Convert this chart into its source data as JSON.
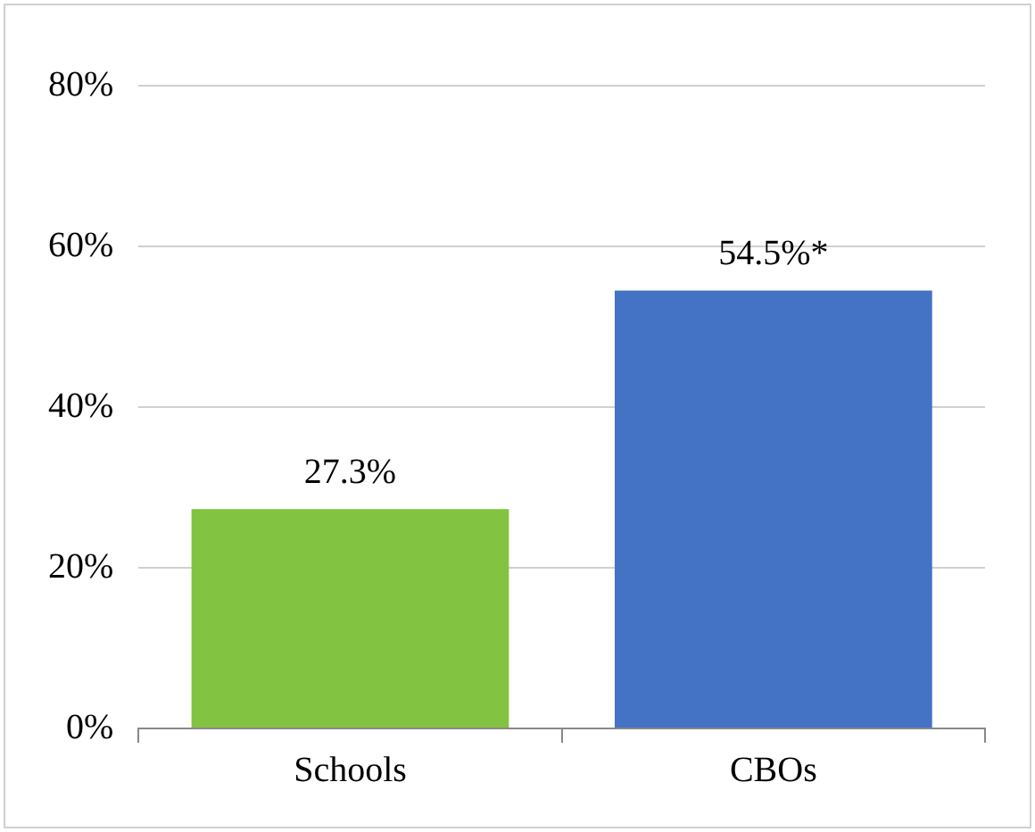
{
  "chart_data": {
    "type": "bar",
    "categories": [
      "Schools",
      "CBOs"
    ],
    "values": [
      27.3,
      54.5
    ],
    "colors": [
      "#82c341",
      "#4472c4"
    ],
    "value_labels": [
      "27.3%",
      "54.5%*"
    ],
    "ylim": [
      0,
      80
    ],
    "yticks": [
      {
        "value": 0,
        "label": "0%"
      },
      {
        "value": 20,
        "label": "20%"
      },
      {
        "value": 40,
        "label": "40%"
      },
      {
        "value": 60,
        "label": "60%"
      },
      {
        "value": 80,
        "label": "80%"
      }
    ],
    "grid": "y"
  }
}
